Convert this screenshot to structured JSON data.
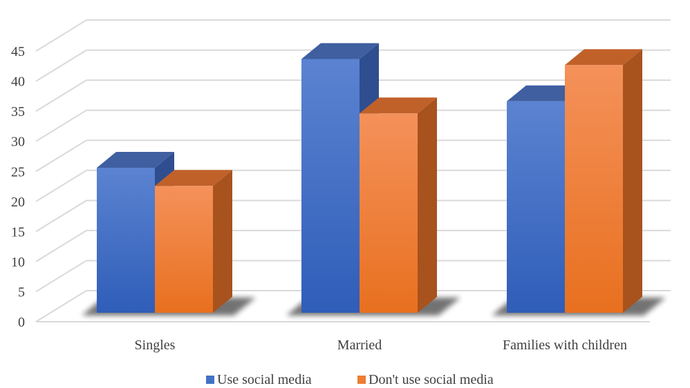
{
  "chart_data": {
    "type": "bar",
    "title": "",
    "xlabel": "",
    "ylabel": "",
    "categories": [
      "Singles",
      "Married",
      "Families with children"
    ],
    "series": [
      {
        "name": "Use social media",
        "values": [
          24,
          42,
          35
        ],
        "color": "#4472C4"
      },
      {
        "name": "Don't use social media",
        "values": [
          21,
          33,
          41
        ],
        "color": "#ED7D31"
      }
    ],
    "ylim": [
      0,
      45
    ],
    "yticks": [
      0,
      5,
      10,
      15,
      20,
      25,
      30,
      35,
      40,
      45
    ],
    "grid": true,
    "legend_position": "bottom",
    "style": "3d-clustered-column"
  }
}
